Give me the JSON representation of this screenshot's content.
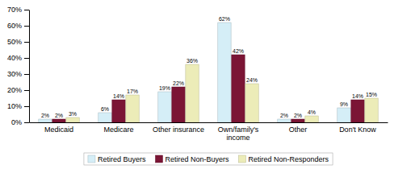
{
  "chart_data": {
    "type": "bar",
    "categories": [
      "Medicaid",
      "Medicare",
      "Other insurance",
      "Own/family's\nincome",
      "Other",
      "Don't Know"
    ],
    "series": [
      {
        "name": "Retired Buyers",
        "color": "#d5eef7",
        "values": [
          2,
          6,
          19,
          62,
          2,
          9
        ],
        "value_labels": [
          "2%",
          "6%",
          "19%",
          "62%",
          "2%",
          "9%"
        ]
      },
      {
        "name": "Retired Non-Buyers",
        "color": "#7b1535",
        "values": [
          2,
          14,
          22,
          42,
          2,
          14
        ],
        "value_labels": [
          "2%",
          "14%",
          "22%",
          "42%",
          "2%",
          "14%"
        ]
      },
      {
        "name": "Retired Non-Responders",
        "color": "#ececb8",
        "values": [
          3,
          17,
          36,
          24,
          4,
          15
        ],
        "value_labels": [
          "3%",
          "17%",
          "36%",
          "24%",
          "4%",
          "15%"
        ]
      }
    ],
    "ylim": [
      0,
      70
    ],
    "yticks": [
      {
        "value": 0,
        "label": "0%"
      },
      {
        "value": 10,
        "label": "10%"
      },
      {
        "value": 20,
        "label": "20%"
      },
      {
        "value": 30,
        "label": "30%"
      },
      {
        "value": 40,
        "label": "40%"
      },
      {
        "value": 50,
        "label": "50%"
      },
      {
        "value": 60,
        "label": "60%"
      },
      {
        "value": 70,
        "label": "70%"
      }
    ],
    "grid": false,
    "legend": "bottom",
    "data_labels": true
  }
}
